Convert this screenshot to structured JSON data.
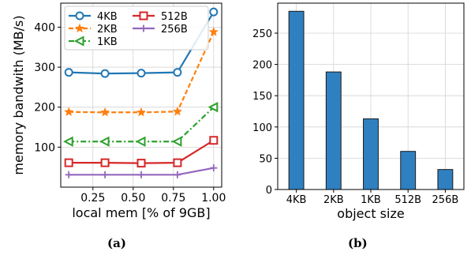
{
  "chart_data": [
    {
      "type": "line",
      "xlabel": "local mem [% of 9GB]",
      "ylabel": "memory bandwith (MB/s)",
      "x": [
        0.1,
        0.325,
        0.55,
        0.775,
        1.0
      ],
      "xlim": [
        0.05,
        1.05
      ],
      "ylim": [
        0,
        460
      ],
      "xticks": [
        "0.25",
        "0.50",
        "0.75",
        "1.00"
      ],
      "xtick_values": [
        0.25,
        0.5,
        0.75,
        1.0
      ],
      "yticks": [
        "100",
        "200",
        "300",
        "400"
      ],
      "ytick_values": [
        100,
        200,
        300,
        400
      ],
      "grid": true,
      "legend": "top, two columns",
      "series": [
        {
          "name": "4KB",
          "values": [
            287,
            284,
            285,
            287,
            438
          ],
          "color": "#1f77b4",
          "style": "solid",
          "marker": "circle"
        },
        {
          "name": "2KB",
          "values": [
            188,
            187,
            187,
            189,
            388
          ],
          "color": "#ff7f0e",
          "style": "dashed",
          "marker": "star"
        },
        {
          "name": "1KB",
          "values": [
            114,
            114,
            114,
            114,
            200
          ],
          "color": "#2ca02c",
          "style": "dashdot",
          "marker": "triangle-left"
        },
        {
          "name": "512B",
          "values": [
            61,
            61,
            60,
            61,
            117
          ],
          "color": "#d62728",
          "style": "solid",
          "marker": "square"
        },
        {
          "name": "256B",
          "values": [
            31,
            31,
            31,
            31,
            48
          ],
          "color": "#9467bd",
          "style": "solid",
          "marker": "plus"
        }
      ]
    },
    {
      "type": "bar",
      "xlabel": "object size",
      "ylabel": "",
      "categories": [
        "4KB",
        "2KB",
        "1KB",
        "512B",
        "256B"
      ],
      "values": [
        285,
        188,
        113,
        61,
        32
      ],
      "ylim": [
        0,
        298
      ],
      "yticks": [
        "0",
        "50",
        "100",
        "150",
        "200",
        "250"
      ],
      "ytick_values": [
        0,
        50,
        100,
        150,
        200,
        250
      ],
      "grid": true,
      "color": "#2f80c0"
    }
  ],
  "captions": [
    "(a)",
    "(b)"
  ]
}
